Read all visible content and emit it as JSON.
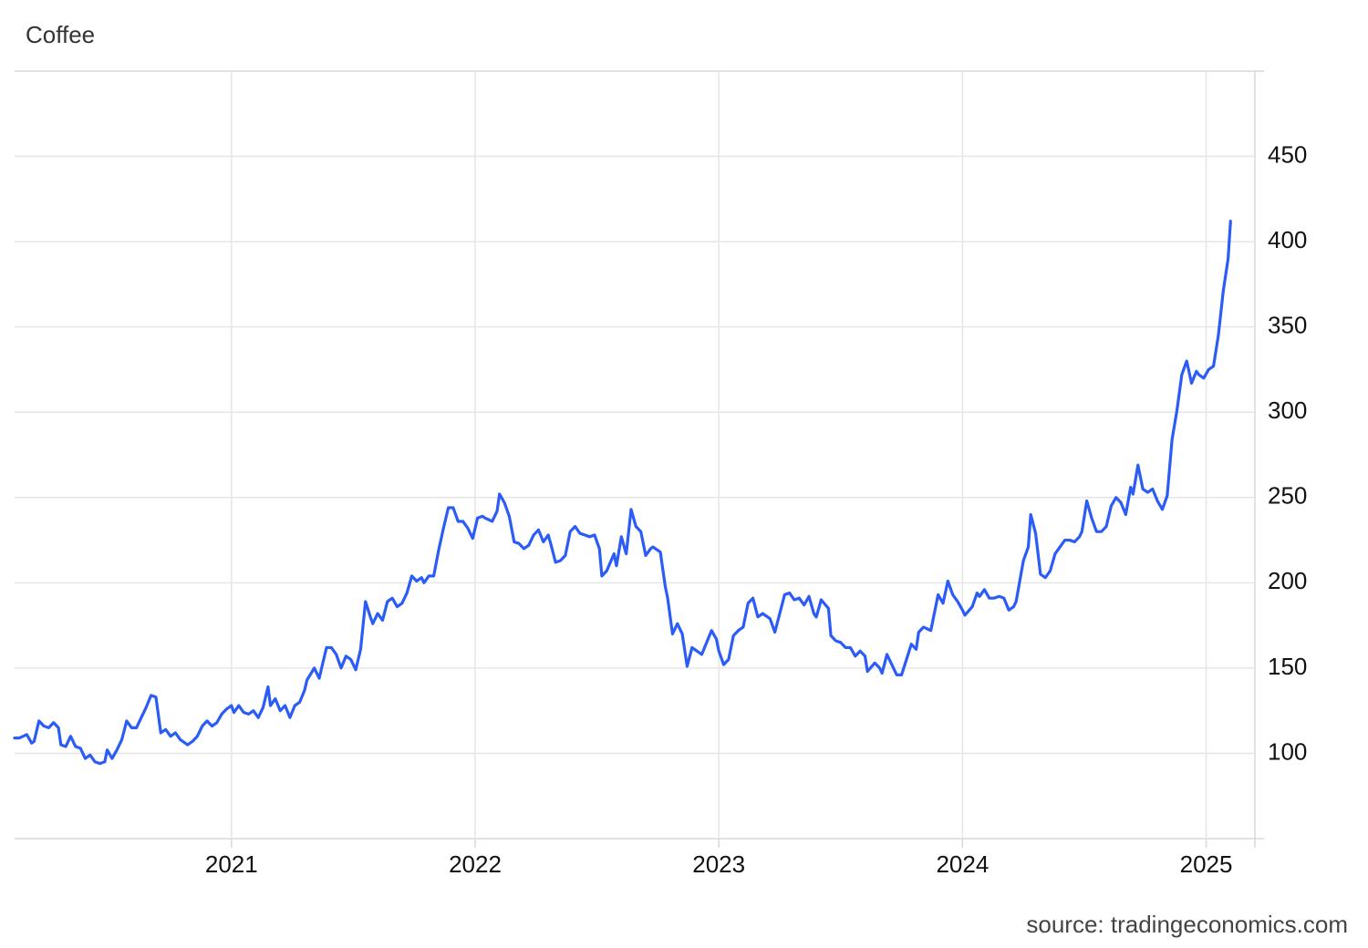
{
  "chart_data": {
    "type": "line",
    "title": "Coffee",
    "source": "source: tradingeconomics.com",
    "color": "#2c5cf6",
    "grid": true,
    "xlim": [
      2020.11,
      2025.2
    ],
    "xticks": [
      2021,
      2022,
      2023,
      2024,
      2025
    ],
    "ylim": [
      50,
      500
    ],
    "yticks": [
      100,
      150,
      200,
      250,
      300,
      350,
      400,
      450
    ],
    "x": [
      2020.11,
      2020.13,
      2020.16,
      2020.18,
      2020.19,
      2020.21,
      2020.23,
      2020.25,
      2020.27,
      2020.29,
      2020.3,
      2020.32,
      2020.34,
      2020.36,
      2020.38,
      2020.4,
      2020.42,
      2020.44,
      2020.46,
      2020.48,
      2020.49,
      2020.51,
      2020.53,
      2020.55,
      2020.57,
      2020.59,
      2020.61,
      2020.63,
      2020.65,
      2020.67,
      2020.69,
      2020.71,
      2020.73,
      2020.75,
      2020.77,
      2020.79,
      2020.81,
      2020.82,
      2020.84,
      2020.86,
      2020.88,
      2020.9,
      2020.92,
      2020.94,
      2020.96,
      2020.98,
      2021.0,
      2021.01,
      2021.03,
      2021.05,
      2021.07,
      2021.09,
      2021.11,
      2021.13,
      2021.15,
      2021.16,
      2021.18,
      2021.2,
      2021.22,
      2021.24,
      2021.26,
      2021.28,
      2021.3,
      2021.31,
      2021.34,
      2021.36,
      2021.37,
      2021.39,
      2021.41,
      2021.43,
      2021.45,
      2021.47,
      2021.49,
      2021.51,
      2021.53,
      2021.55,
      2021.57,
      2021.58,
      2021.6,
      2021.62,
      2021.64,
      2021.66,
      2021.68,
      2021.7,
      2021.72,
      2021.74,
      2021.76,
      2021.78,
      2021.79,
      2021.81,
      2021.83,
      2021.85,
      2021.87,
      2021.89,
      2021.91,
      2021.93,
      2021.95,
      2021.97,
      2021.99,
      2022.01,
      2022.03,
      2022.04,
      2022.07,
      2022.09,
      2022.1,
      2022.12,
      2022.14,
      2022.16,
      2022.18,
      2022.2,
      2022.22,
      2022.24,
      2022.26,
      2022.28,
      2022.3,
      2022.31,
      2022.33,
      2022.35,
      2022.37,
      2022.39,
      2022.41,
      2022.43,
      2022.45,
      2022.47,
      2022.49,
      2022.51,
      2022.52,
      2022.54,
      2022.57,
      2022.58,
      2022.6,
      2022.62,
      2022.64,
      2022.66,
      2022.68,
      2022.7,
      2022.72,
      2022.73,
      2022.76,
      2022.78,
      2022.79,
      2022.81,
      2022.83,
      2022.85,
      2022.87,
      2022.89,
      2022.91,
      2022.93,
      2022.95,
      2022.97,
      2022.99,
      2023.0,
      2023.02,
      2023.04,
      2023.06,
      2023.08,
      2023.1,
      2023.12,
      2023.14,
      2023.16,
      2023.18,
      2023.19,
      2023.21,
      2023.23,
      2023.25,
      2023.27,
      2023.29,
      2023.31,
      2023.33,
      2023.35,
      2023.37,
      2023.39,
      2023.4,
      2023.42,
      2023.45,
      2023.46,
      2023.48,
      2023.5,
      2023.52,
      2023.54,
      2023.56,
      2023.58,
      2023.6,
      2023.61,
      2023.64,
      2023.66,
      2023.67,
      2023.69,
      2023.71,
      2023.73,
      2023.75,
      2023.77,
      2023.79,
      2023.81,
      2023.82,
      2023.84,
      2023.87,
      2023.88,
      2023.9,
      2023.92,
      2023.94,
      2023.96,
      2023.98,
      2024.0,
      2024.01,
      2024.04,
      2024.06,
      2024.07,
      2024.09,
      2024.11,
      2024.13,
      2024.15,
      2024.17,
      2024.19,
      2024.21,
      2024.22,
      2024.25,
      2024.27,
      2024.28,
      2024.3,
      2024.32,
      2024.34,
      2024.36,
      2024.38,
      2024.4,
      2024.42,
      2024.44,
      2024.46,
      2024.48,
      2024.49,
      2024.51,
      2024.53,
      2024.55,
      2024.57,
      2024.59,
      2024.61,
      2024.63,
      2024.65,
      2024.67,
      2024.69,
      2024.7,
      2024.72,
      2024.74,
      2024.76,
      2024.78,
      2024.8,
      2024.82,
      2024.84,
      2024.86,
      2024.88,
      2024.9,
      2024.92,
      2024.94,
      2024.96,
      2024.97,
      2024.99,
      2025.01,
      2025.03,
      2025.05,
      2025.07,
      2025.09,
      2025.1
    ],
    "values": [
      109,
      109,
      111,
      106,
      107,
      119,
      116,
      115,
      118,
      115,
      105,
      104,
      110,
      104,
      103,
      97,
      99,
      95,
      94,
      95,
      102,
      97,
      102,
      108,
      119,
      115,
      115,
      121,
      127,
      134,
      133,
      112,
      114,
      110,
      112,
      108,
      106,
      105,
      107,
      110,
      116,
      119,
      116,
      118,
      123,
      126,
      128,
      124,
      128,
      124,
      123,
      125,
      121,
      127,
      139,
      128,
      132,
      125,
      128,
      121,
      128,
      130,
      137,
      143,
      150,
      144,
      150,
      162,
      162,
      158,
      150,
      157,
      155,
      149,
      161,
      189,
      180,
      176,
      182,
      178,
      189,
      191,
      186,
      188,
      194,
      204,
      201,
      203,
      200,
      204,
      204,
      219,
      232,
      244,
      244,
      236,
      236,
      232,
      226,
      238,
      239,
      238,
      236,
      242,
      252,
      247,
      239,
      224,
      223,
      220,
      222,
      228,
      231,
      224,
      228,
      223,
      212,
      213,
      216,
      230,
      233,
      229,
      228,
      227,
      228,
      220,
      204,
      207,
      217,
      210,
      227,
      217,
      243,
      233,
      230,
      216,
      220,
      221,
      218,
      198,
      191,
      170,
      176,
      170,
      151,
      162,
      160,
      158,
      165,
      172,
      167,
      160,
      152,
      155,
      169,
      172,
      174,
      188,
      191,
      180,
      182,
      181,
      179,
      171,
      182,
      193,
      194,
      190,
      191,
      187,
      192,
      182,
      180,
      190,
      185,
      169,
      166,
      165,
      162,
      162,
      157,
      160,
      157,
      148,
      153,
      150,
      147,
      158,
      152,
      146,
      146,
      155,
      164,
      161,
      171,
      174,
      172,
      179,
      193,
      188,
      201,
      193,
      189,
      184,
      181,
      186,
      194,
      192,
      196,
      191,
      191,
      192,
      191,
      184,
      186,
      189,
      213,
      221,
      240,
      229,
      205,
      203,
      207,
      217,
      221,
      225,
      225,
      224,
      227,
      230,
      248,
      238,
      230,
      230,
      233,
      245,
      250,
      247,
      240,
      256,
      252,
      269,
      255,
      253,
      255,
      248,
      243,
      251,
      284,
      301,
      322,
      330,
      317,
      324,
      322,
      320,
      325,
      327,
      345,
      371,
      390,
      412
    ]
  }
}
